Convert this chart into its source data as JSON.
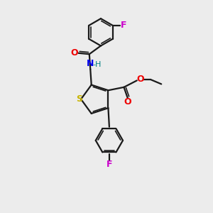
{
  "background_color": "#ececec",
  "bond_color": "#1a1a1a",
  "S_color": "#c8b400",
  "N_color": "#0000ee",
  "O_color": "#ee0000",
  "F_color": "#cc00cc",
  "H_color": "#008080",
  "figsize": [
    3.0,
    3.0
  ],
  "dpi": 100,
  "xlim": [
    0,
    10
  ],
  "ylim": [
    0,
    10
  ]
}
